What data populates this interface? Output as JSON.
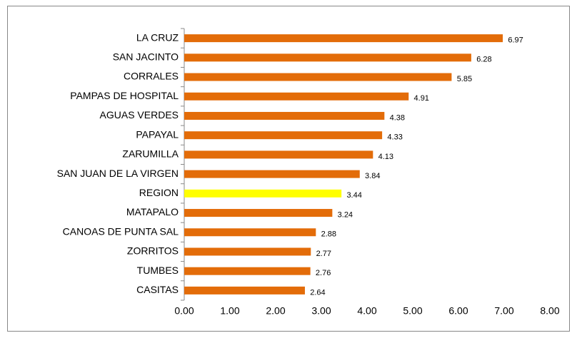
{
  "chart_data": {
    "type": "barh",
    "categories": [
      "LA CRUZ",
      "SAN JACINTO",
      "CORRALES",
      "PAMPAS DE HOSPITAL",
      "AGUAS VERDES",
      "PAPAYAL",
      "ZARUMILLA",
      "SAN JUAN DE LA VIRGEN",
      "REGION",
      "MATAPALO",
      "CANOAS DE PUNTA SAL",
      "ZORRITOS",
      "TUMBES",
      "CASITAS"
    ],
    "values": [
      6.97,
      6.28,
      5.85,
      4.91,
      4.38,
      4.33,
      4.13,
      3.84,
      3.44,
      3.24,
      2.88,
      2.77,
      2.76,
      2.64
    ],
    "colors": [
      "#e36c09",
      "#e36c09",
      "#e36c09",
      "#e36c09",
      "#e36c09",
      "#e36c09",
      "#e36c09",
      "#e36c09",
      "#ffff00",
      "#e36c09",
      "#e36c09",
      "#e36c09",
      "#e36c09",
      "#e36c09"
    ],
    "xlim": [
      0,
      8
    ],
    "xticks": [
      {
        "value": 0,
        "label": "0.00"
      },
      {
        "value": 1,
        "label": "1.00"
      },
      {
        "value": 2,
        "label": "2.00"
      },
      {
        "value": 3,
        "label": "3.00"
      },
      {
        "value": 4,
        "label": "4.00"
      },
      {
        "value": 5,
        "label": "5.00"
      },
      {
        "value": 6,
        "label": "6.00"
      },
      {
        "value": 7,
        "label": "7.00"
      },
      {
        "value": 8,
        "label": "8.00"
      }
    ],
    "grid": false
  }
}
